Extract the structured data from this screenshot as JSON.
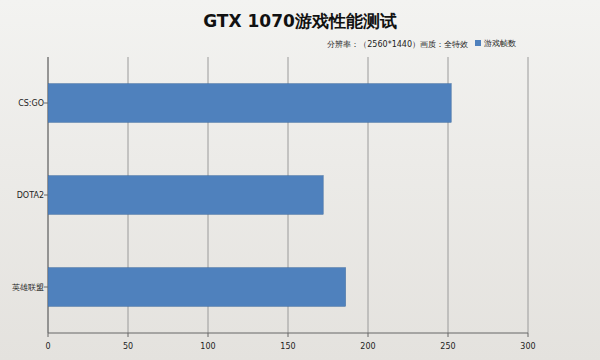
{
  "chart_data": {
    "type": "bar",
    "orientation": "horizontal",
    "title": "GTX 1070游戏性能测试",
    "subtitle": "分辨率：（2560*1440）画质：全特效",
    "categories": [
      "CS:GO",
      "DOTA2",
      "英雄联盟"
    ],
    "series": [
      {
        "name": "游戏帧数",
        "color": "#4f81bd",
        "values": [
          252,
          172,
          186
        ]
      }
    ],
    "xlim": [
      0,
      300
    ],
    "xticks": [
      0,
      50,
      100,
      150,
      200,
      250,
      300
    ],
    "grid": true,
    "legend": "top-right"
  }
}
